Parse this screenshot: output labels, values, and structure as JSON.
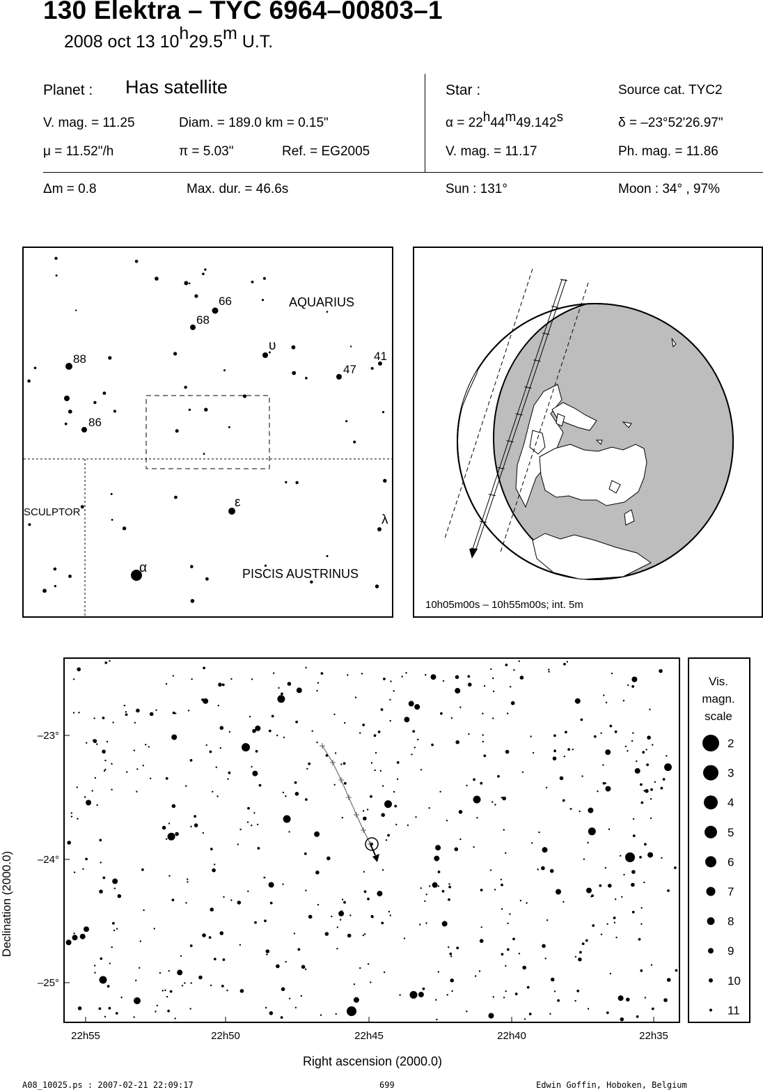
{
  "header": {
    "title": "130 Elektra  –  TYC 6964–00803–1",
    "date": "2008 oct 13  10",
    "time_h": "h",
    "time_min": "29.5",
    "time_m": "m",
    "time_ut": " U.T."
  },
  "planet": {
    "label": "Planet :",
    "satellite": "Has satellite",
    "vmag": "V. mag. = 11.25",
    "diam": "Diam. = 189.0 km = 0.15\"",
    "mu": "μ =  11.52\"/h",
    "pi": "π =  5.03\"",
    "ref": "Ref. = EG2005"
  },
  "star": {
    "label": "Star :",
    "source": "Source cat.  TYC2",
    "alpha_pre": "α = 22",
    "alpha_h": "h",
    "alpha_44": "44",
    "alpha_m": "m",
    "alpha_sec": "49.142",
    "alpha_s": "s",
    "delta": "δ = –23°52'26.97\"",
    "vmag": "V. mag. = 11.17",
    "phmag": "Ph. mag. = 11.86"
  },
  "event": {
    "dm": "Δm = 0.8",
    "maxdur": "Max. dur. = 46.6s",
    "sun": "Sun : 131°",
    "moon": "Moon :  34° , 97%"
  },
  "finder": {
    "constellations": [
      "AQUARIUS",
      "SCULPTOR",
      "PISCIS AUSTRINUS"
    ],
    "star_labels": [
      "66",
      "68",
      "88",
      "86",
      "47",
      "41",
      "υ",
      "ε",
      "λ",
      "α"
    ]
  },
  "globe": {
    "caption": "10h05m00s – 10h55m00s; int.  5m"
  },
  "chart_data": {
    "type": "scatter",
    "xlabel": "Right ascension (2000.0)",
    "ylabel": "Declination (2000.0)",
    "x_ticks": [
      "22h55",
      "22h50",
      "22h45",
      "22h40",
      "22h35"
    ],
    "y_ticks": [
      "–23°",
      "–24°",
      "–25°"
    ],
    "xlim": [
      "22h55.8",
      "22h34.4"
    ],
    "ylim": [
      -25.35,
      -22.4
    ],
    "target": {
      "ra": "22h44m49.142s",
      "dec": "–23°52'26.97\""
    }
  },
  "scale": {
    "title_lines": [
      "Vis.",
      "magn.",
      "scale"
    ],
    "mags": [
      "2",
      "3",
      "4",
      "5",
      "6",
      "7",
      "8",
      "9",
      "10",
      "11"
    ]
  },
  "footer": {
    "left": "A08_10025.ps : 2007-02-21 22:09:17",
    "page": "699",
    "right": "Edwin Goffin, Hoboken, Belgium"
  }
}
